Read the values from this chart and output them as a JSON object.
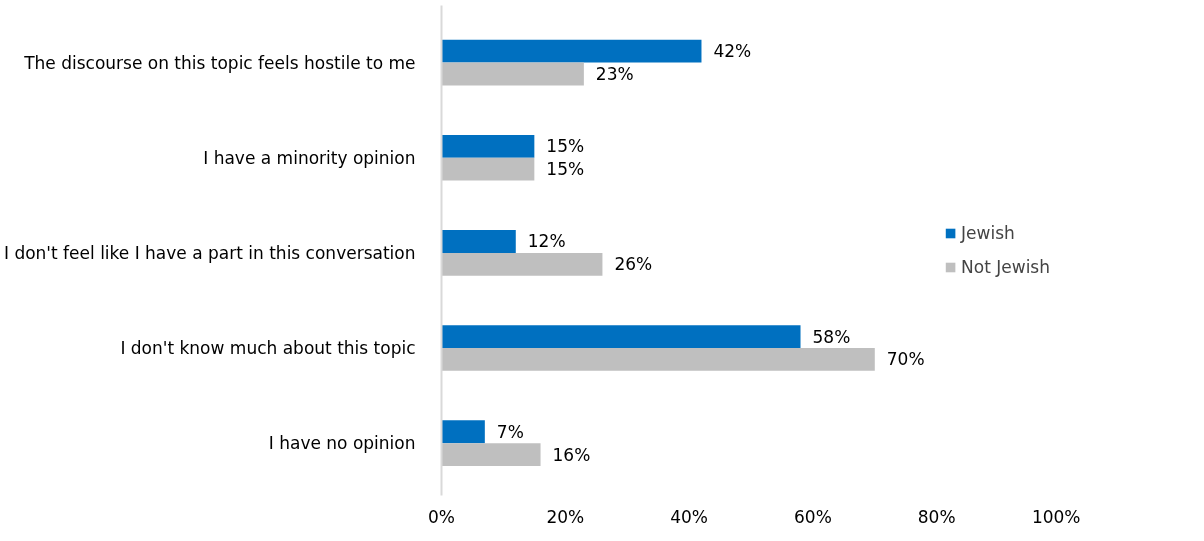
{
  "chart_data": {
    "type": "bar",
    "orientation": "horizontal",
    "categories": [
      "The discourse on this topic feels hostile to me",
      "I have a minority opinion",
      "I don't feel like I have a part in this conversation",
      "I don't know much about this topic",
      "I have no opinion"
    ],
    "series": [
      {
        "name": "Jewish",
        "color": "#0070c0",
        "values": [
          42,
          15,
          12,
          58,
          7
        ],
        "value_labels": [
          "42%",
          "15%",
          "12%",
          "58%",
          "7%"
        ]
      },
      {
        "name": "Not Jewish",
        "color": "#bfbfbf",
        "values": [
          23,
          15,
          26,
          70,
          16
        ],
        "value_labels": [
          "23%",
          "15%",
          "26%",
          "70%",
          "16%"
        ]
      }
    ],
    "xlim": [
      0,
      100
    ],
    "xticks": [
      {
        "value": 0,
        "label": "0%"
      },
      {
        "value": 20,
        "label": "20%"
      },
      {
        "value": 40,
        "label": "40%"
      },
      {
        "value": 60,
        "label": "60%"
      },
      {
        "value": 80,
        "label": "80%"
      },
      {
        "value": 100,
        "label": "100%"
      }
    ],
    "grid": false,
    "legend": "right"
  }
}
